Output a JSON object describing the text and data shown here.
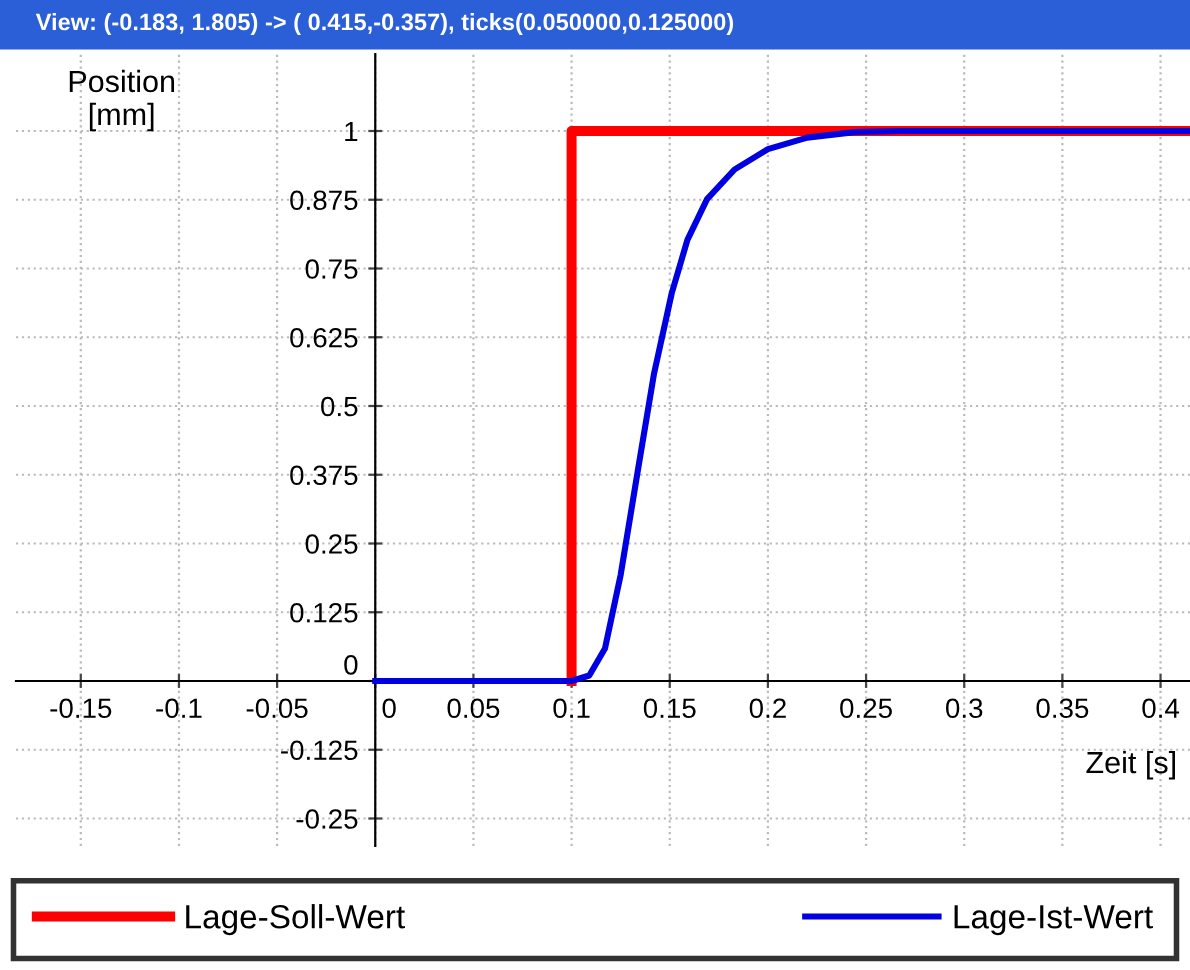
{
  "chart_data": {
    "type": "line",
    "title": "View: (-0.183, 1.805) -> ( 0.415,-0.357), ticks(0.050000,0.125000)",
    "xlabel": "Zeit [s]",
    "ylabel": "Position\n[mm]",
    "series": [
      {
        "name": "Lage-Soll-Wert",
        "color": "#ff0000",
        "x": [
          0.1,
          0.1,
          0.415
        ],
        "values": [
          0,
          1,
          1
        ]
      },
      {
        "name": "Lage-Ist-Wert",
        "color": "#0000e0",
        "x": [
          0,
          0.1,
          0.109,
          0.117,
          0.125,
          0.134,
          0.142,
          0.151,
          0.159,
          0.169,
          0.183,
          0.2,
          0.22,
          0.244,
          0.267,
          0.415
        ],
        "values": [
          0,
          0,
          0.01,
          0.059,
          0.193,
          0.388,
          0.559,
          0.705,
          0.802,
          0.876,
          0.93,
          0.967,
          0.988,
          0.998,
          1,
          1
        ]
      }
    ],
    "xlim": [
      -0.183,
      0.415
    ],
    "ylim": [
      -0.3,
      1.14
    ],
    "xticks": [
      -0.15,
      -0.1,
      -0.05,
      0,
      0.05,
      0.1,
      0.15,
      0.2,
      0.25,
      0.3,
      0.35,
      0.4
    ],
    "yticks": [
      -0.25,
      -0.125,
      0,
      0.125,
      0.25,
      0.375,
      0.5,
      0.625,
      0.75,
      0.875,
      1
    ],
    "grid": true,
    "legend": "bottom",
    "line_style": "solid",
    "marker": "none"
  }
}
